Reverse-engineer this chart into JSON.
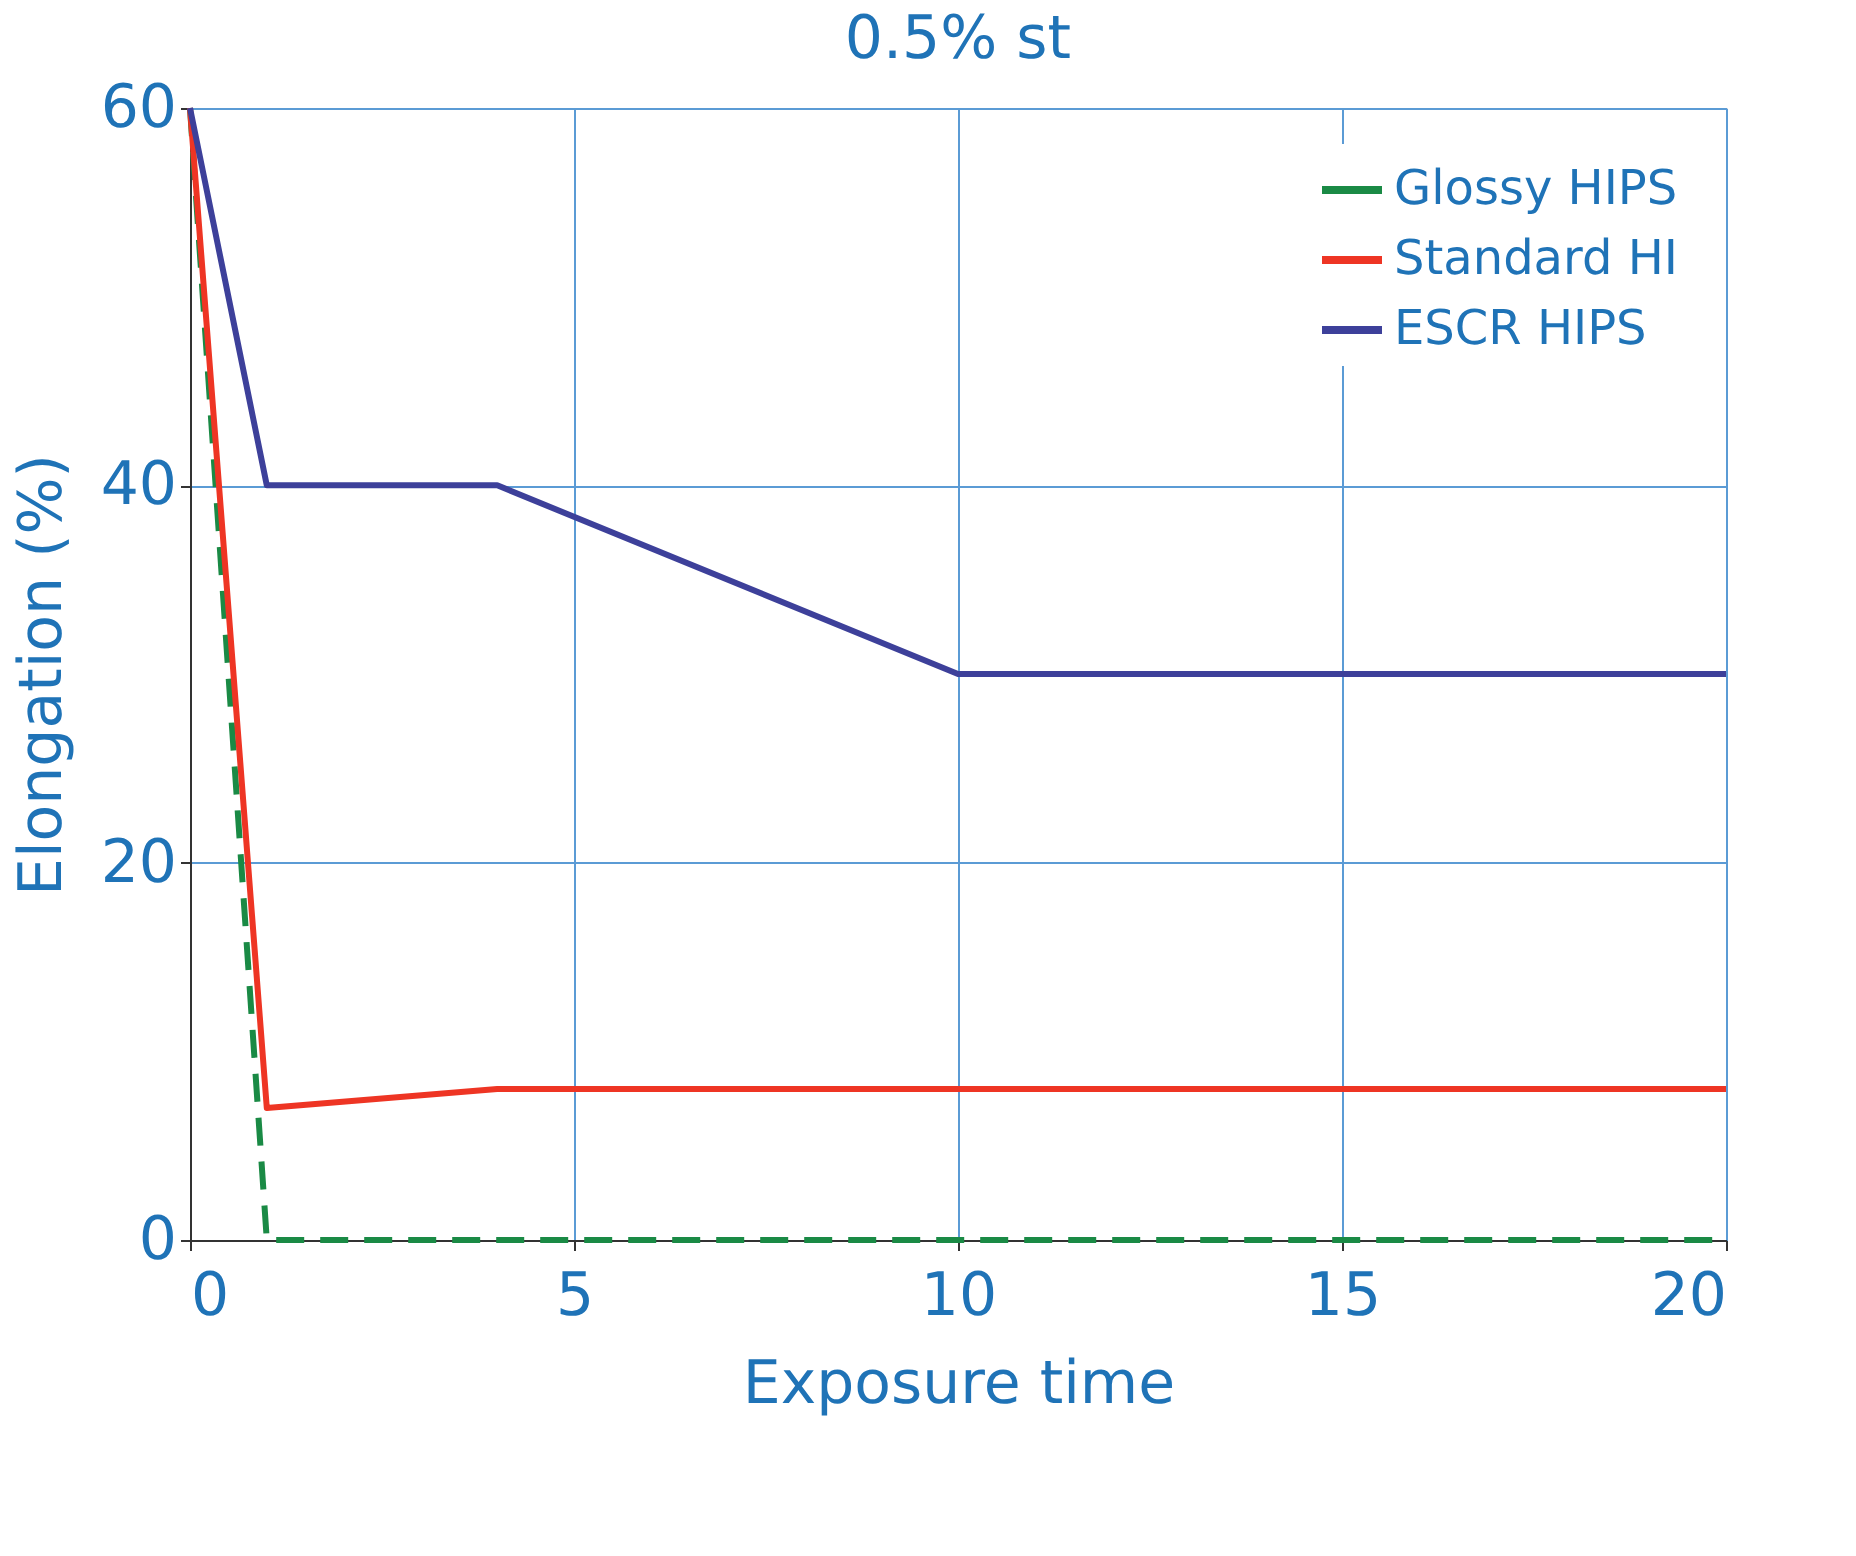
{
  "chart_data": {
    "type": "line",
    "title": "0.5% st",
    "xlabel": "Exposure time",
    "ylabel": "Elongation (%)",
    "xlim": [
      0,
      20
    ],
    "xticks": [
      0,
      5,
      10,
      15,
      20
    ],
    "ylim": [
      0,
      60
    ],
    "yticks": [
      0,
      20,
      40,
      60
    ],
    "grid": true,
    "legend": "top right",
    "marker": "none",
    "series": [
      {
        "name": "Glossy HIPS",
        "color": "#1a8a45",
        "line_style": "dashed",
        "x": [
          0,
          1,
          20
        ],
        "values": [
          60,
          0,
          0
        ]
      },
      {
        "name": "Standard HI",
        "color": "#ee3524",
        "line_style": "solid",
        "x": [
          0,
          1,
          4,
          20
        ],
        "values": [
          60,
          7,
          8,
          8
        ]
      },
      {
        "name": "ESCR HIPS",
        "color": "#3d409a",
        "line_style": "solid",
        "x": [
          0,
          1,
          4,
          10,
          20
        ],
        "values": [
          60,
          40,
          40,
          30,
          30
        ]
      }
    ]
  }
}
